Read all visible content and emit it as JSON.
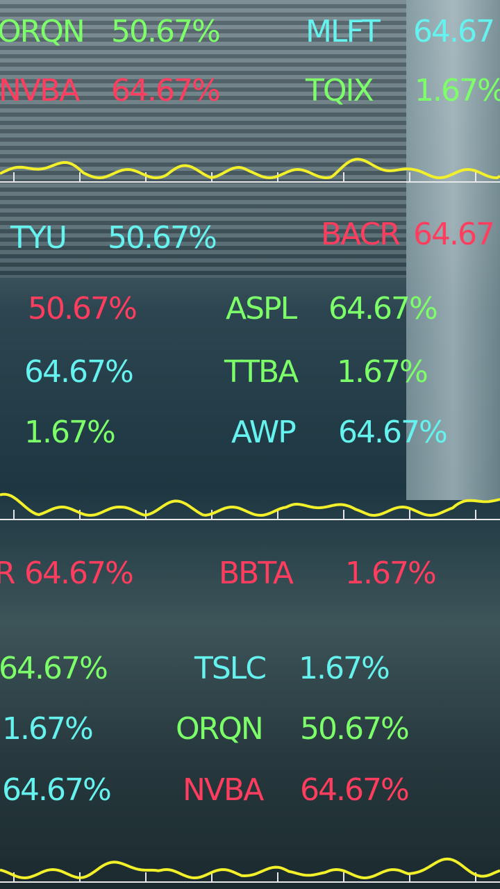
{
  "quotes": [
    {
      "symbol": "ORQN",
      "change": "50.67%",
      "color": "#7dff6a"
    },
    {
      "symbol": "MLFT",
      "change": "64.67",
      "color": "#66f2ee"
    },
    {
      "symbol": "NVBA",
      "change": "64.67%",
      "color": "#ff3d5e"
    },
    {
      "symbol": "TQIX",
      "change": "1.67%",
      "color": "#7dff6a"
    },
    {
      "symbol": "TYU",
      "change": "50.67%",
      "color": "#66f2ee"
    },
    {
      "symbol": "BACR",
      "change": "64.67",
      "color": "#ff3d5e"
    },
    {
      "change": "50.67%",
      "color": "#ff3d5e"
    },
    {
      "symbol": "ASPL",
      "change": "64.67%",
      "color": "#7dff6a"
    },
    {
      "change": "64.67%",
      "color": "#66f2ee"
    },
    {
      "symbol": "TTBA",
      "change": "1.67%",
      "color": "#7dff6a"
    },
    {
      "change": "1.67%",
      "color": "#7dff6a"
    },
    {
      "symbol": "AWP",
      "change": "64.67%",
      "color": "#66f2ee"
    },
    {
      "symbol": "R",
      "change": "64.67%",
      "color": "#ff3d5e"
    },
    {
      "symbol": "BBTA",
      "change": "1.67%",
      "color": "#ff3d5e"
    },
    {
      "change": "64.67%",
      "color": "#7dff6a"
    },
    {
      "symbol": "TSLC",
      "change": "1.67%",
      "color": "#66f2ee"
    },
    {
      "change": "1.67%",
      "color": "#66f2ee"
    },
    {
      "symbol": "ORQN",
      "change": "50.67%",
      "color": "#7dff6a"
    },
    {
      "change": "64.67%",
      "color": "#66f2ee"
    },
    {
      "symbol": "NVBA",
      "change": "64.67%",
      "color": "#ff3d5e"
    }
  ]
}
